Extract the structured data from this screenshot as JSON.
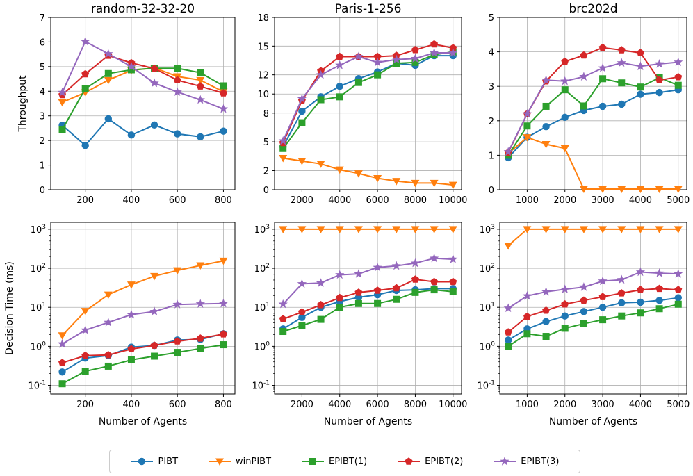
{
  "figure": {
    "legend": [
      "PIBT",
      "winPIBT",
      "EPIBT(1)",
      "EPIBT(2)",
      "EPIBT(3)"
    ]
  },
  "styles": {
    "PIBT": {
      "color": "#1f77b4",
      "marker": "circle"
    },
    "winPIBT": {
      "color": "#ff7f0e",
      "marker": "triangle-down"
    },
    "EPIBT(1)": {
      "color": "#2ca02c",
      "marker": "square"
    },
    "EPIBT(2)": {
      "color": "#d62728",
      "marker": "pentagon"
    },
    "EPIBT(3)": {
      "color": "#9467bd",
      "marker": "star"
    }
  },
  "chart_data": [
    {
      "type": "line",
      "title": "random-32-32-20",
      "xlabel": "",
      "ylabel": "Throughput",
      "x": [
        100,
        200,
        300,
        400,
        500,
        600,
        700,
        800
      ],
      "xlim": [
        50,
        850
      ],
      "xticks": [
        200,
        400,
        600,
        800
      ],
      "ylim": [
        0,
        7
      ],
      "yticks": [
        0,
        1,
        2,
        3,
        4,
        5,
        6,
        7
      ],
      "yscale": "linear",
      "grid": true,
      "series": [
        {
          "name": "PIBT",
          "values": [
            2.62,
            1.8,
            2.88,
            2.22,
            2.63,
            2.27,
            2.15,
            2.38
          ]
        },
        {
          "name": "winPIBT",
          "values": [
            3.55,
            3.95,
            4.45,
            4.85,
            4.95,
            4.6,
            4.45,
            3.98
          ]
        },
        {
          "name": "EPIBT(1)",
          "values": [
            2.45,
            4.1,
            4.72,
            4.87,
            4.93,
            4.93,
            4.75,
            4.22
          ]
        },
        {
          "name": "EPIBT(2)",
          "values": [
            3.85,
            4.7,
            5.45,
            5.15,
            4.92,
            4.45,
            4.2,
            3.92
          ]
        },
        {
          "name": "EPIBT(3)",
          "values": [
            3.95,
            6.02,
            5.52,
            5.0,
            4.33,
            3.97,
            3.65,
            3.28
          ]
        }
      ]
    },
    {
      "type": "line",
      "title": "Paris-1-256",
      "xlabel": "",
      "ylabel": "",
      "x": [
        1000,
        2000,
        3000,
        4000,
        5000,
        6000,
        7000,
        8000,
        9000,
        10000
      ],
      "xlim": [
        550,
        10450
      ],
      "xticks": [
        2000,
        4000,
        6000,
        8000,
        10000
      ],
      "ylim": [
        0,
        18
      ],
      "yticks": [
        0,
        2,
        5,
        8,
        10,
        12,
        15,
        18
      ],
      "yscale": "linear",
      "grid": true,
      "series": [
        {
          "name": "PIBT",
          "values": [
            4.5,
            8.2,
            9.7,
            10.8,
            11.6,
            12.3,
            13.2,
            13.0,
            14.0,
            14.0
          ]
        },
        {
          "name": "winPIBT",
          "values": [
            3.3,
            3.0,
            2.7,
            2.1,
            1.7,
            1.2,
            0.9,
            0.7,
            0.7,
            0.5
          ]
        },
        {
          "name": "EPIBT(1)",
          "values": [
            4.3,
            7.0,
            9.4,
            9.7,
            11.2,
            12.0,
            13.2,
            13.3,
            14.1,
            14.4
          ]
        },
        {
          "name": "EPIBT(2)",
          "values": [
            4.9,
            9.3,
            12.4,
            13.9,
            13.9,
            13.9,
            14.0,
            14.6,
            15.2,
            14.8
          ]
        },
        {
          "name": "EPIBT(3)",
          "values": [
            5.1,
            9.5,
            12.0,
            13.0,
            13.9,
            13.3,
            13.6,
            13.7,
            14.3,
            14.3
          ]
        }
      ]
    },
    {
      "type": "line",
      "title": "brc202d",
      "xlabel": "",
      "ylabel": "",
      "x": [
        500,
        1000,
        1500,
        2000,
        2500,
        3000,
        3500,
        4000,
        4500,
        5000
      ],
      "xlim": [
        275,
        5225
      ],
      "xticks": [
        1000,
        2000,
        3000,
        4000,
        5000
      ],
      "ylim": [
        0,
        5
      ],
      "yticks": [
        0,
        1,
        2,
        3,
        4,
        5
      ],
      "yscale": "linear",
      "grid": true,
      "series": [
        {
          "name": "PIBT",
          "values": [
            0.93,
            1.52,
            1.83,
            2.1,
            2.3,
            2.42,
            2.48,
            2.77,
            2.82,
            2.9
          ]
        },
        {
          "name": "winPIBT",
          "values": [
            1.05,
            1.52,
            1.32,
            1.2,
            0.02,
            0.02,
            0.02,
            0.02,
            0.02,
            0.02
          ]
        },
        {
          "name": "EPIBT(1)",
          "values": [
            1.0,
            1.85,
            2.42,
            2.9,
            2.43,
            3.22,
            3.1,
            2.98,
            3.25,
            3.03
          ]
        },
        {
          "name": "EPIBT(2)",
          "values": [
            1.08,
            2.2,
            3.15,
            3.72,
            3.9,
            4.12,
            4.05,
            3.97,
            3.18,
            3.27
          ]
        },
        {
          "name": "EPIBT(3)",
          "values": [
            1.1,
            2.2,
            3.18,
            3.15,
            3.28,
            3.53,
            3.68,
            3.58,
            3.65,
            3.7
          ]
        }
      ]
    },
    {
      "type": "line",
      "title": "",
      "xlabel": "Number of Agents",
      "ylabel": "Decision Time (ms)",
      "x": [
        100,
        200,
        300,
        400,
        500,
        600,
        700,
        800
      ],
      "xlim": [
        50,
        850
      ],
      "xticks": [
        200,
        400,
        600,
        800
      ],
      "ylim": [
        0.06,
        1500
      ],
      "yticks": [
        0.1,
        1,
        10,
        100,
        1000
      ],
      "yscale": "log",
      "grid": true,
      "series": [
        {
          "name": "PIBT",
          "values": [
            0.22,
            0.5,
            0.58,
            0.95,
            1.05,
            1.45,
            1.5,
            2.1
          ]
        },
        {
          "name": "winPIBT",
          "values": [
            1.9,
            8.0,
            21,
            38,
            63,
            88,
            118,
            155
          ]
        },
        {
          "name": "EPIBT(1)",
          "values": [
            0.11,
            0.23,
            0.31,
            0.45,
            0.56,
            0.7,
            0.88,
            1.1
          ]
        },
        {
          "name": "EPIBT(2)",
          "values": [
            0.38,
            0.58,
            0.6,
            0.85,
            1.05,
            1.35,
            1.6,
            2.05
          ]
        },
        {
          "name": "EPIBT(3)",
          "values": [
            1.15,
            2.6,
            4.1,
            6.5,
            7.8,
            11.8,
            12.2,
            12.5
          ]
        }
      ]
    },
    {
      "type": "line",
      "title": "",
      "xlabel": "Number of Agents",
      "ylabel": "",
      "x": [
        1000,
        2000,
        3000,
        4000,
        5000,
        6000,
        7000,
        8000,
        9000,
        10000
      ],
      "xlim": [
        550,
        10450
      ],
      "xticks": [
        2000,
        4000,
        6000,
        8000,
        10000
      ],
      "ylim": [
        0.06,
        1500
      ],
      "yticks": [
        0.1,
        1,
        10,
        100,
        1000
      ],
      "yscale": "log",
      "grid": true,
      "series": [
        {
          "name": "PIBT",
          "values": [
            2.8,
            5.5,
            10.0,
            14.0,
            18.0,
            21.0,
            27.0,
            28.0,
            30.0,
            30.0
          ]
        },
        {
          "name": "winPIBT",
          "values": [
            1000,
            1000,
            1000,
            1000,
            1000,
            1000,
            1000,
            1000,
            1000,
            1000
          ]
        },
        {
          "name": "EPIBT(1)",
          "values": [
            2.4,
            3.4,
            4.9,
            10.0,
            12.5,
            12.5,
            16.0,
            24.0,
            28.0,
            25.0
          ]
        },
        {
          "name": "EPIBT(2)",
          "values": [
            5.0,
            7.5,
            11.5,
            17.5,
            24.0,
            27.0,
            31.0,
            52.0,
            45.0,
            45.0
          ]
        },
        {
          "name": "EPIBT(3)",
          "values": [
            12.0,
            40.0,
            42.0,
            68.0,
            72.0,
            105.0,
            115.0,
            135.0,
            180.0,
            170.0
          ]
        }
      ]
    },
    {
      "type": "line",
      "title": "",
      "xlabel": "Number of Agents",
      "ylabel": "",
      "x": [
        500,
        1000,
        1500,
        2000,
        2500,
        3000,
        3500,
        4000,
        4500,
        5000
      ],
      "xlim": [
        275,
        5225
      ],
      "xticks": [
        1000,
        2000,
        3000,
        4000,
        5000
      ],
      "ylim": [
        0.06,
        1500
      ],
      "yticks": [
        0.1,
        1,
        10,
        100,
        1000
      ],
      "yscale": "log",
      "grid": true,
      "series": [
        {
          "name": "PIBT",
          "values": [
            1.45,
            2.8,
            4.3,
            6.0,
            7.8,
            10.0,
            13.0,
            13.5,
            15.0,
            17.5
          ]
        },
        {
          "name": "winPIBT",
          "values": [
            380,
            1000,
            1000,
            1000,
            1000,
            1000,
            1000,
            1000,
            1000,
            1000
          ]
        },
        {
          "name": "EPIBT(1)",
          "values": [
            1.0,
            2.1,
            1.8,
            2.9,
            3.8,
            4.8,
            6.0,
            7.2,
            9.2,
            12.0
          ]
        },
        {
          "name": "EPIBT(2)",
          "values": [
            2.3,
            5.8,
            8.3,
            12.0,
            15.0,
            18.5,
            23.0,
            28.0,
            30.0,
            28.0
          ]
        },
        {
          "name": "EPIBT(3)",
          "values": [
            9.5,
            19.5,
            25.0,
            29.0,
            33.0,
            47.0,
            51.0,
            80.0,
            75.0,
            72.0
          ]
        }
      ]
    }
  ]
}
